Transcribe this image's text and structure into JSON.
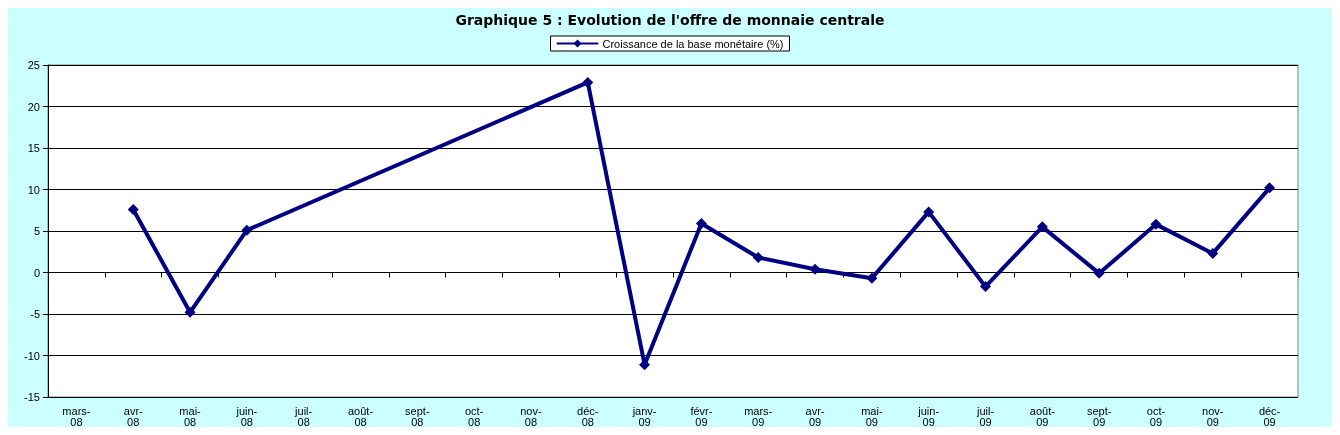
{
  "chart_data": {
    "type": "line",
    "title": "Graphique 5 : Evolution de l'offre de monnaie centrale",
    "categories": [
      "mars-08",
      "avr-08",
      "mai-08",
      "juin-08",
      "juil-08",
      "août-08",
      "sept-08",
      "oct-08",
      "nov-08",
      "déc-08",
      "janv-09",
      "févr-09",
      "mars-09",
      "avr-09",
      "mai-09",
      "juin-09",
      "juil-09",
      "août-09",
      "sept-09",
      "oct-09",
      "nov-09",
      "déc-09"
    ],
    "series": [
      {
        "name": "Croissance de la base monétaire (%)",
        "color": "#000080",
        "values": [
          null,
          7.6,
          -4.8,
          5.1,
          null,
          null,
          null,
          null,
          null,
          22.9,
          -11.1,
          5.9,
          1.8,
          0.4,
          -0.7,
          7.3,
          -1.7,
          5.5,
          -0.1,
          5.8,
          2.3,
          10.2
        ]
      }
    ],
    "ylim": [
      -15,
      25
    ],
    "yticks": [
      -15,
      -10,
      -5,
      0,
      5,
      10,
      15,
      20,
      25
    ],
    "grid": "y",
    "legend": "top",
    "marker": "diamond",
    "line_style": "solid"
  }
}
